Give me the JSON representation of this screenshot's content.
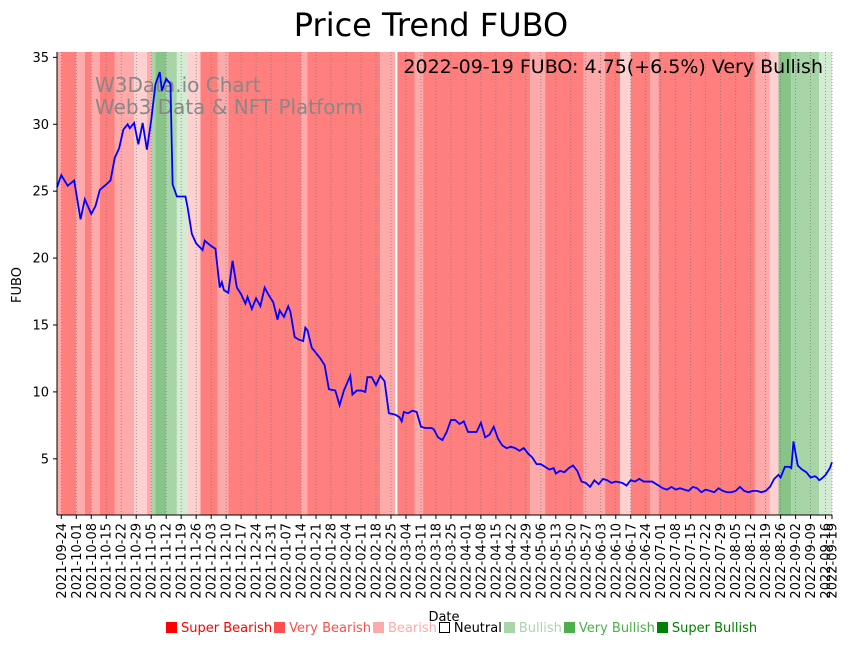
{
  "chart_data": {
    "type": "line",
    "title": "Price Trend FUBO",
    "xlabel": "Date",
    "ylabel": "FUBO",
    "ylim": [
      0.8,
      35.4
    ],
    "yticks": [
      5,
      10,
      15,
      20,
      25,
      30,
      35
    ],
    "annotation": "2022-09-19 FUBO: 4.75(+6.5%) Very Bullish",
    "watermark": [
      "W3Data.io Chart",
      "Web3 Data & NFT Platform"
    ],
    "x_start": "2021-09-22",
    "x_end": "2022-09-19",
    "xticks": [
      "2021-09-24",
      "2021-10-01",
      "2021-10-08",
      "2021-10-15",
      "2021-10-22",
      "2021-10-29",
      "2021-11-05",
      "2021-11-12",
      "2021-11-19",
      "2021-11-26",
      "2021-12-03",
      "2021-12-10",
      "2021-12-17",
      "2021-12-24",
      "2021-12-31",
      "2022-01-07",
      "2022-01-14",
      "2022-01-21",
      "2022-01-28",
      "2022-02-04",
      "2022-02-11",
      "2022-02-18",
      "2022-02-25",
      "2022-03-04",
      "2022-03-11",
      "2022-03-18",
      "2022-03-25",
      "2022-04-01",
      "2022-04-08",
      "2022-04-15",
      "2022-04-22",
      "2022-04-29",
      "2022-05-06",
      "2022-05-13",
      "2022-05-20",
      "2022-05-27",
      "2022-06-03",
      "2022-06-10",
      "2022-06-17",
      "2022-06-24",
      "2022-07-01",
      "2022-07-08",
      "2022-07-15",
      "2022-07-22",
      "2022-07-29",
      "2022-08-05",
      "2022-08-12",
      "2022-08-19",
      "2022-08-26",
      "2022-09-02",
      "2022-09-09",
      "2022-09-16",
      "2022-09-19"
    ],
    "series": [
      {
        "name": "FUBO",
        "color": "#0000ff",
        "points": [
          [
            "2021-09-22",
            25.3
          ],
          [
            "2021-09-24",
            26.2
          ],
          [
            "2021-09-27",
            25.4
          ],
          [
            "2021-09-30",
            25.8
          ],
          [
            "2021-10-03",
            22.9
          ],
          [
            "2021-10-05",
            24.4
          ],
          [
            "2021-10-08",
            23.3
          ],
          [
            "2021-10-10",
            23.9
          ],
          [
            "2021-10-12",
            25.1
          ],
          [
            "2021-10-15",
            25.5
          ],
          [
            "2021-10-17",
            25.8
          ],
          [
            "2021-10-19",
            27.5
          ],
          [
            "2021-10-21",
            28.2
          ],
          [
            "2021-10-23",
            29.6
          ],
          [
            "2021-10-25",
            30.0
          ],
          [
            "2021-10-26",
            29.7
          ],
          [
            "2021-10-28",
            30.1
          ],
          [
            "2021-10-30",
            28.5
          ],
          [
            "2021-11-01",
            30.1
          ],
          [
            "2021-11-03",
            28.1
          ],
          [
            "2021-11-05",
            30.3
          ],
          [
            "2021-11-07",
            33.0
          ],
          [
            "2021-11-09",
            33.9
          ],
          [
            "2021-11-10",
            32.5
          ],
          [
            "2021-11-12",
            33.4
          ],
          [
            "2021-11-14",
            33.0
          ],
          [
            "2021-11-15",
            25.5
          ],
          [
            "2021-11-17",
            24.6
          ],
          [
            "2021-11-21",
            24.6
          ],
          [
            "2021-11-22",
            23.8
          ],
          [
            "2021-11-24",
            21.8
          ],
          [
            "2021-11-26",
            21.1
          ],
          [
            "2021-11-29",
            20.6
          ],
          [
            "2021-11-30",
            21.3
          ],
          [
            "2021-12-03",
            20.9
          ],
          [
            "2021-12-05",
            20.7
          ],
          [
            "2021-12-07",
            17.8
          ],
          [
            "2021-12-08",
            18.2
          ],
          [
            "2021-12-09",
            17.6
          ],
          [
            "2021-12-11",
            17.4
          ],
          [
            "2021-12-13",
            19.8
          ],
          [
            "2021-12-15",
            17.8
          ],
          [
            "2021-12-17",
            17.3
          ],
          [
            "2021-12-19",
            16.6
          ],
          [
            "2021-12-20",
            17.1
          ],
          [
            "2021-12-22",
            16.2
          ],
          [
            "2021-12-24",
            17.0
          ],
          [
            "2021-12-26",
            16.4
          ],
          [
            "2021-12-28",
            17.8
          ],
          [
            "2021-12-30",
            17.2
          ],
          [
            "2022-01-01",
            16.7
          ],
          [
            "2022-01-03",
            15.4
          ],
          [
            "2022-01-04",
            16.1
          ],
          [
            "2022-01-06",
            15.6
          ],
          [
            "2022-01-08",
            16.4
          ],
          [
            "2022-01-09",
            16.0
          ],
          [
            "2022-01-11",
            14.1
          ],
          [
            "2022-01-13",
            13.9
          ],
          [
            "2022-01-15",
            13.8
          ],
          [
            "2022-01-16",
            14.8
          ],
          [
            "2022-01-17",
            14.6
          ],
          [
            "2022-01-19",
            13.3
          ],
          [
            "2022-01-21",
            12.9
          ],
          [
            "2022-01-23",
            12.5
          ],
          [
            "2022-01-25",
            12.0
          ],
          [
            "2022-01-27",
            10.2
          ],
          [
            "2022-01-30",
            10.1
          ],
          [
            "2022-02-01",
            9.0
          ],
          [
            "2022-02-03",
            10.1
          ],
          [
            "2022-02-06",
            11.2
          ],
          [
            "2022-02-07",
            9.8
          ],
          [
            "2022-02-09",
            10.1
          ],
          [
            "2022-02-11",
            10.1
          ],
          [
            "2022-02-13",
            10.0
          ],
          [
            "2022-02-14",
            11.1
          ],
          [
            "2022-02-16",
            11.1
          ],
          [
            "2022-02-18",
            10.5
          ],
          [
            "2022-02-20",
            11.2
          ],
          [
            "2022-02-22",
            10.8
          ],
          [
            "2022-02-24",
            8.4
          ],
          [
            "2022-02-27",
            8.3
          ],
          [
            "2022-03-01",
            8.1
          ],
          [
            "2022-03-02",
            7.8
          ],
          [
            "2022-03-03",
            8.5
          ],
          [
            "2022-03-05",
            8.4
          ],
          [
            "2022-03-07",
            8.6
          ],
          [
            "2022-03-09",
            8.5
          ],
          [
            "2022-03-11",
            7.4
          ],
          [
            "2022-03-13",
            7.3
          ],
          [
            "2022-03-16",
            7.3
          ],
          [
            "2022-03-17",
            7.2
          ],
          [
            "2022-03-19",
            6.6
          ],
          [
            "2022-03-21",
            6.4
          ],
          [
            "2022-03-23",
            7.0
          ],
          [
            "2022-03-25",
            7.9
          ],
          [
            "2022-03-27",
            7.9
          ],
          [
            "2022-03-29",
            7.6
          ],
          [
            "2022-03-31",
            7.8
          ],
          [
            "2022-04-02",
            7.0
          ],
          [
            "2022-04-04",
            7.0
          ],
          [
            "2022-04-06",
            7.0
          ],
          [
            "2022-04-08",
            7.7
          ],
          [
            "2022-04-10",
            6.6
          ],
          [
            "2022-04-12",
            6.8
          ],
          [
            "2022-04-14",
            7.4
          ],
          [
            "2022-04-16",
            6.5
          ],
          [
            "2022-04-18",
            6.0
          ],
          [
            "2022-04-20",
            5.8
          ],
          [
            "2022-04-22",
            5.9
          ],
          [
            "2022-04-24",
            5.8
          ],
          [
            "2022-04-26",
            5.6
          ],
          [
            "2022-04-28",
            5.8
          ],
          [
            "2022-04-30",
            5.4
          ],
          [
            "2022-05-02",
            5.1
          ],
          [
            "2022-05-04",
            4.6
          ],
          [
            "2022-05-06",
            4.6
          ],
          [
            "2022-05-08",
            4.4
          ],
          [
            "2022-05-10",
            4.2
          ],
          [
            "2022-05-12",
            4.3
          ],
          [
            "2022-05-13",
            3.9
          ],
          [
            "2022-05-15",
            4.1
          ],
          [
            "2022-05-17",
            4.0
          ],
          [
            "2022-05-19",
            4.3
          ],
          [
            "2022-05-21",
            4.5
          ],
          [
            "2022-05-23",
            4.1
          ],
          [
            "2022-05-25",
            3.3
          ],
          [
            "2022-05-27",
            3.2
          ],
          [
            "2022-05-29",
            2.9
          ],
          [
            "2022-05-31",
            3.4
          ],
          [
            "2022-06-02",
            3.1
          ],
          [
            "2022-06-04",
            3.5
          ],
          [
            "2022-06-06",
            3.4
          ],
          [
            "2022-06-08",
            3.2
          ],
          [
            "2022-06-10",
            3.3
          ],
          [
            "2022-06-13",
            3.2
          ],
          [
            "2022-06-15",
            3.0
          ],
          [
            "2022-06-17",
            3.4
          ],
          [
            "2022-06-19",
            3.3
          ],
          [
            "2022-06-21",
            3.5
          ],
          [
            "2022-06-23",
            3.3
          ],
          [
            "2022-06-25",
            3.3
          ],
          [
            "2022-06-27",
            3.3
          ],
          [
            "2022-06-30",
            3.0
          ],
          [
            "2022-07-02",
            2.8
          ],
          [
            "2022-07-04",
            2.7
          ],
          [
            "2022-07-06",
            2.9
          ],
          [
            "2022-07-08",
            2.7
          ],
          [
            "2022-07-10",
            2.8
          ],
          [
            "2022-07-12",
            2.7
          ],
          [
            "2022-07-14",
            2.6
          ],
          [
            "2022-07-16",
            2.9
          ],
          [
            "2022-07-18",
            2.8
          ],
          [
            "2022-07-20",
            2.5
          ],
          [
            "2022-07-22",
            2.7
          ],
          [
            "2022-07-24",
            2.6
          ],
          [
            "2022-07-26",
            2.5
          ],
          [
            "2022-07-28",
            2.8
          ],
          [
            "2022-07-30",
            2.6
          ],
          [
            "2022-08-01",
            2.5
          ],
          [
            "2022-08-03",
            2.5
          ],
          [
            "2022-08-05",
            2.6
          ],
          [
            "2022-08-07",
            2.9
          ],
          [
            "2022-08-09",
            2.6
          ],
          [
            "2022-08-11",
            2.5
          ],
          [
            "2022-08-13",
            2.6
          ],
          [
            "2022-08-15",
            2.6
          ],
          [
            "2022-08-17",
            2.5
          ],
          [
            "2022-08-19",
            2.6
          ],
          [
            "2022-08-21",
            2.9
          ],
          [
            "2022-08-23",
            3.5
          ],
          [
            "2022-08-25",
            3.8
          ],
          [
            "2022-08-26",
            3.6
          ],
          [
            "2022-08-28",
            4.4
          ],
          [
            "2022-08-30",
            4.4
          ],
          [
            "2022-08-31",
            4.3
          ],
          [
            "2022-09-01",
            6.3
          ],
          [
            "2022-09-03",
            4.5
          ],
          [
            "2022-09-05",
            4.2
          ],
          [
            "2022-09-07",
            4.0
          ],
          [
            "2022-09-09",
            3.6
          ],
          [
            "2022-09-11",
            3.7
          ],
          [
            "2022-09-12",
            3.6
          ],
          [
            "2022-09-13",
            3.4
          ],
          [
            "2022-09-14",
            3.5
          ],
          [
            "2022-09-16",
            3.8
          ],
          [
            "2022-09-18",
            4.3
          ],
          [
            "2022-09-19",
            4.75
          ]
        ]
      }
    ],
    "sentiment_bands": [
      {
        "start": "2021-09-22",
        "end": "2021-09-24",
        "level": "bearish"
      },
      {
        "start": "2021-09-24",
        "end": "2021-10-01",
        "level": "very_bearish"
      },
      {
        "start": "2021-10-01",
        "end": "2021-10-05",
        "level": "bearish"
      },
      {
        "start": "2021-10-05",
        "end": "2021-10-08",
        "level": "very_bearish"
      },
      {
        "start": "2021-10-08",
        "end": "2021-10-12",
        "level": "bearish"
      },
      {
        "start": "2021-10-12",
        "end": "2021-10-19",
        "level": "very_bearish"
      },
      {
        "start": "2021-10-19",
        "end": "2021-10-28",
        "level": "bearish"
      },
      {
        "start": "2021-10-28",
        "end": "2021-11-03",
        "level": "neutral_light"
      },
      {
        "start": "2021-11-03",
        "end": "2021-11-05",
        "level": "bearish"
      },
      {
        "start": "2021-11-05",
        "end": "2021-11-07",
        "level": "bullish"
      },
      {
        "start": "2021-11-07",
        "end": "2021-11-12",
        "level": "very_bullish"
      },
      {
        "start": "2021-11-12",
        "end": "2021-11-17",
        "level": "bullish"
      },
      {
        "start": "2021-11-17",
        "end": "2021-11-22",
        "level": "bullish_light"
      },
      {
        "start": "2021-11-22",
        "end": "2021-11-28",
        "level": "neutral_light"
      },
      {
        "start": "2021-11-28",
        "end": "2021-12-06",
        "level": "very_bearish"
      },
      {
        "start": "2021-12-06",
        "end": "2021-12-11",
        "level": "bearish"
      },
      {
        "start": "2021-12-11",
        "end": "2022-01-14",
        "level": "very_bearish"
      },
      {
        "start": "2022-01-14",
        "end": "2022-01-17",
        "level": "bearish"
      },
      {
        "start": "2022-01-17",
        "end": "2022-02-20",
        "level": "very_bearish"
      },
      {
        "start": "2022-02-20",
        "end": "2022-02-27",
        "level": "bearish"
      },
      {
        "start": "2022-02-27",
        "end": "2022-02-28",
        "level": "neutral"
      },
      {
        "start": "2022-02-28",
        "end": "2022-03-08",
        "level": "very_bearish"
      },
      {
        "start": "2022-03-08",
        "end": "2022-03-12",
        "level": "bearish"
      },
      {
        "start": "2022-03-12",
        "end": "2022-05-01",
        "level": "very_bearish"
      },
      {
        "start": "2022-05-01",
        "end": "2022-05-08",
        "level": "bearish"
      },
      {
        "start": "2022-05-08",
        "end": "2022-05-26",
        "level": "very_bearish"
      },
      {
        "start": "2022-05-26",
        "end": "2022-06-05",
        "level": "bearish"
      },
      {
        "start": "2022-06-05",
        "end": "2022-06-12",
        "level": "very_bearish"
      },
      {
        "start": "2022-06-12",
        "end": "2022-06-17",
        "level": "neutral_light"
      },
      {
        "start": "2022-06-17",
        "end": "2022-06-26",
        "level": "very_bearish"
      },
      {
        "start": "2022-06-26",
        "end": "2022-06-30",
        "level": "bearish"
      },
      {
        "start": "2022-06-30",
        "end": "2022-08-14",
        "level": "very_bearish"
      },
      {
        "start": "2022-08-14",
        "end": "2022-08-21",
        "level": "bearish"
      },
      {
        "start": "2022-08-21",
        "end": "2022-08-25",
        "level": "neutral_light"
      },
      {
        "start": "2022-08-25",
        "end": "2022-08-31",
        "level": "very_bullish"
      },
      {
        "start": "2022-08-31",
        "end": "2022-09-13",
        "level": "bullish"
      },
      {
        "start": "2022-09-13",
        "end": "2022-09-19",
        "level": "bullish_light"
      }
    ],
    "band_colors": {
      "very_bearish": "#ff7f7f",
      "bearish": "#ffaaaa",
      "neutral_light": "#ffd0d0",
      "neutral": "#ffffff",
      "bullish_light": "#d3ead3",
      "bullish": "#a8d5a8",
      "very_bullish": "#88c488"
    },
    "legend": [
      {
        "label": "Super Bearish",
        "color": "#ff0000",
        "swatch": "#ff0000",
        "hollow": false
      },
      {
        "label": "Very Bearish",
        "color": "#ff4d4d",
        "swatch": "#ff4d4d",
        "hollow": false
      },
      {
        "label": "Bearish",
        "color": "#ffaaaa",
        "swatch": "#ffaaaa",
        "hollow": false
      },
      {
        "label": "Neutral",
        "color": "#000000",
        "swatch": "#ffffff",
        "hollow": true
      },
      {
        "label": "Bullish",
        "color": "#aad5aa",
        "swatch": "#aad5aa",
        "hollow": false
      },
      {
        "label": "Very Bullish",
        "color": "#4caf4c",
        "swatch": "#4caf4c",
        "hollow": false
      },
      {
        "label": "Super Bullish",
        "color": "#008000",
        "swatch": "#008000",
        "hollow": false
      }
    ]
  }
}
